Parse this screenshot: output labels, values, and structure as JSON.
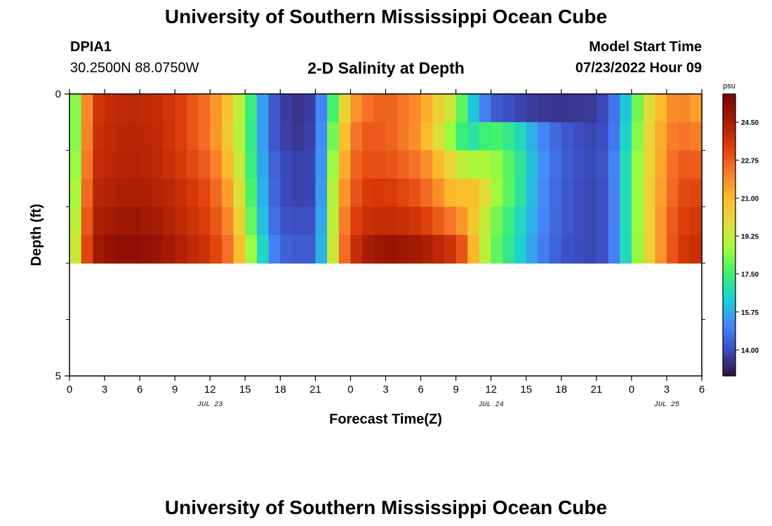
{
  "page": {
    "title": "University of Southern Mississippi Ocean Cube",
    "title_repeat": "University of Southern Mississippi Ocean Cube",
    "station": "DPIA1",
    "coordinates": "30.2500N  88.0750W",
    "plot_title": "2-D Salinity at Depth",
    "model_start_label": "Model Start Time",
    "model_start_value": "07/23/2022 Hour 09"
  },
  "chart_data": {
    "type": "heatmap",
    "xlabel": "Forecast Time(Z)",
    "ylabel": "Depth (ft)",
    "x_tick_labels": [
      "0",
      "3",
      "6",
      "9",
      "12",
      "15",
      "18",
      "21",
      "0",
      "3",
      "6",
      "9",
      "12",
      "15",
      "18",
      "21",
      "0",
      "3",
      "6"
    ],
    "x_minor_ticks_per_major": 2,
    "date_labels": [
      {
        "text": "JUL 23",
        "hour": 12
      },
      {
        "text": "JUL 24",
        "hour": 36
      },
      {
        "text": "JUL 25",
        "hour": 51
      }
    ],
    "x_range_hours": [
      0,
      54
    ],
    "y_range_ft": [
      0,
      5
    ],
    "y_tick_labels": [
      {
        "text": "0",
        "value": 0
      },
      {
        "text": "5",
        "value": 5
      }
    ],
    "y_minor_ticks": [
      1,
      2,
      3,
      4
    ],
    "depth_levels_ft": [
      0.25,
      0.75,
      1.25,
      1.75,
      2.25,
      2.75
    ],
    "depth_band_edges_ft": [
      0,
      0.5,
      1.0,
      1.5,
      2.0,
      2.5,
      3.0
    ],
    "time_keyframes_hours": [
      0,
      1,
      2,
      3,
      5,
      7,
      9,
      12,
      14,
      15,
      16,
      17,
      18,
      20,
      21,
      22,
      23,
      24,
      25,
      27,
      30,
      33,
      34,
      35,
      36,
      38,
      40,
      42,
      44,
      45,
      46,
      47,
      48,
      49,
      50,
      51,
      52,
      53,
      54
    ],
    "salinity_psu_by_depth": [
      [
        16.4,
        20.4,
        23.4,
        23.9,
        24.1,
        24.0,
        23.6,
        22.2,
        20.2,
        18.2,
        16.5,
        14.6,
        13.8,
        13.4,
        14.0,
        16.2,
        19.0,
        21.3,
        22.2,
        22.8,
        21.7,
        19.0,
        16.8,
        15.6,
        14.4,
        13.9,
        13.6,
        13.5,
        13.6,
        13.6,
        14.2,
        15.4,
        17.0,
        19.2,
        20.6,
        21.5,
        22.2,
        21.7,
        21.3
      ],
      [
        16.4,
        20.4,
        23.6,
        24.0,
        24.2,
        24.1,
        23.6,
        22.2,
        20.0,
        18.0,
        16.5,
        14.6,
        13.8,
        13.5,
        14.0,
        16.5,
        19.8,
        21.8,
        22.8,
        22.8,
        21.6,
        18.0,
        16.8,
        17.2,
        17.8,
        17.0,
        15.4,
        14.3,
        13.9,
        13.8,
        14.2,
        15.6,
        17.3,
        19.4,
        20.8,
        21.8,
        22.4,
        22.2,
        22.0
      ],
      [
        16.5,
        20.6,
        23.8,
        24.1,
        24.3,
        24.2,
        23.7,
        22.6,
        20.5,
        18.2,
        16.6,
        14.8,
        14.0,
        13.7,
        14.0,
        16.8,
        20.4,
        22.2,
        23.0,
        23.0,
        22.2,
        19.8,
        18.8,
        19.0,
        18.8,
        17.5,
        15.6,
        14.4,
        14.0,
        13.9,
        14.4,
        15.8,
        17.6,
        19.5,
        20.9,
        21.9,
        22.8,
        22.8,
        22.7
      ],
      [
        16.6,
        21.0,
        24.0,
        24.3,
        24.5,
        24.4,
        24.0,
        23.0,
        21.0,
        18.5,
        16.8,
        15.0,
        14.0,
        13.7,
        14.0,
        17.0,
        21.0,
        22.5,
        23.4,
        23.6,
        22.8,
        20.8,
        20.8,
        20.8,
        19.0,
        17.5,
        15.5,
        14.3,
        13.9,
        13.8,
        14.3,
        15.8,
        17.6,
        19.5,
        21.0,
        22.0,
        23.0,
        23.2,
        23.2
      ],
      [
        16.8,
        21.5,
        24.2,
        24.6,
        24.9,
        24.7,
        24.2,
        23.3,
        21.5,
        19.0,
        17.0,
        15.2,
        14.2,
        14.0,
        14.2,
        17.2,
        21.2,
        23.0,
        23.8,
        24.0,
        23.6,
        22.0,
        21.3,
        20.0,
        18.5,
        17.0,
        15.4,
        14.3,
        13.9,
        13.8,
        14.3,
        15.8,
        17.6,
        19.5,
        21.0,
        22.3,
        23.2,
        23.5,
        23.6
      ],
      [
        17.0,
        22.0,
        24.4,
        25.0,
        25.3,
        25.0,
        24.5,
        23.6,
        22.0,
        19.8,
        17.5,
        15.6,
        14.5,
        14.2,
        14.4,
        17.4,
        21.5,
        23.4,
        24.4,
        25.0,
        24.6,
        23.6,
        22.2,
        20.0,
        18.3,
        16.8,
        15.2,
        14.2,
        13.9,
        13.8,
        14.3,
        15.8,
        17.5,
        19.5,
        21.0,
        22.4,
        23.4,
        23.8,
        23.9
      ]
    ],
    "colorbar": {
      "unit": "psu",
      "min": 12.8,
      "max": 25.8,
      "tick_values": [
        14.0,
        15.75,
        17.5,
        19.25,
        21.0,
        22.75,
        24.5
      ],
      "tick_labels": [
        "14.00",
        "15.75",
        "17.50",
        "19.25",
        "21.00",
        "22.75",
        "24.50"
      ],
      "colormap": [
        "#30123b",
        "#3b4cc0",
        "#4686fb",
        "#1bd0d5",
        "#3ef16f",
        "#a4fc3c",
        "#e2dc38",
        "#feb92b",
        "#f8752a",
        "#db3a08",
        "#a41a04",
        "#7a0403"
      ]
    }
  }
}
